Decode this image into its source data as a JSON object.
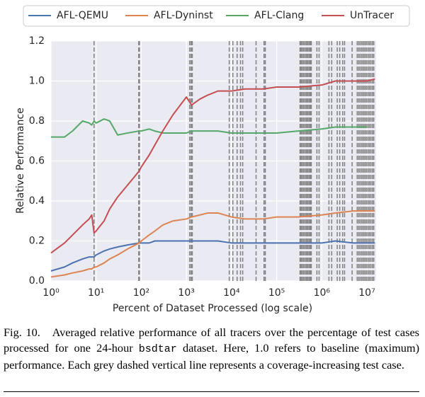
{
  "chart_data": {
    "type": "line",
    "xlabel": "Percent of Dataset Processed (log scale)",
    "ylabel": "Relative Performance",
    "xscale": "log",
    "xlim": [
      1,
      16000000
    ],
    "ylim": [
      0,
      1.2
    ],
    "xticks": [
      {
        "value": 1,
        "label": "10⁰"
      },
      {
        "value": 10,
        "label": "10¹"
      },
      {
        "value": 100,
        "label": "10²"
      },
      {
        "value": 1000,
        "label": "10³"
      },
      {
        "value": 10000,
        "label": "10⁴"
      },
      {
        "value": 100000,
        "label": "10⁵"
      },
      {
        "value": 1000000,
        "label": "10⁶"
      },
      {
        "value": 10000000,
        "label": "10⁷"
      }
    ],
    "yticks": [
      {
        "value": 0,
        "label": "0.0"
      },
      0.2,
      0.4,
      0.6,
      0.8,
      {
        "value": 1,
        "label": "1.0"
      },
      1.2
    ],
    "grid": true,
    "legend": "top",
    "x": [
      1,
      2,
      3,
      5,
      7,
      8,
      9,
      10,
      15,
      20,
      30,
      50,
      90,
      100,
      150,
      200,
      300,
      500,
      1000,
      1300,
      2000,
      3000,
      5000,
      10000,
      20000,
      50000,
      100000,
      300000,
      1000000,
      2000000,
      5000000,
      10000000,
      15000000
    ],
    "series": [
      {
        "name": "AFL-QEMU",
        "color": "#4c72b0",
        "values": [
          0.05,
          0.07,
          0.09,
          0.11,
          0.12,
          0.12,
          0.12,
          0.13,
          0.15,
          0.16,
          0.17,
          0.18,
          0.19,
          0.19,
          0.19,
          0.2,
          0.2,
          0.2,
          0.2,
          0.2,
          0.2,
          0.2,
          0.2,
          0.19,
          0.19,
          0.19,
          0.19,
          0.19,
          0.19,
          0.2,
          0.19,
          0.19,
          0.19
        ]
      },
      {
        "name": "AFL-Dyninst",
        "color": "#dd8452",
        "values": [
          0.02,
          0.03,
          0.04,
          0.05,
          0.06,
          0.06,
          0.07,
          0.07,
          0.09,
          0.11,
          0.13,
          0.16,
          0.19,
          0.2,
          0.23,
          0.25,
          0.28,
          0.3,
          0.31,
          0.32,
          0.33,
          0.34,
          0.34,
          0.32,
          0.31,
          0.31,
          0.32,
          0.32,
          0.33,
          0.34,
          0.35,
          0.35,
          0.35
        ]
      },
      {
        "name": "AFL-Clang",
        "color": "#55a868",
        "values": [
          0.72,
          0.72,
          0.75,
          0.8,
          0.79,
          0.78,
          0.8,
          0.79,
          0.81,
          0.8,
          0.73,
          0.74,
          0.75,
          0.75,
          0.76,
          0.75,
          0.74,
          0.74,
          0.74,
          0.75,
          0.75,
          0.75,
          0.75,
          0.74,
          0.74,
          0.74,
          0.74,
          0.75,
          0.76,
          0.77,
          0.77,
          0.77,
          null
        ]
      },
      {
        "name": "UnTracer",
        "color": "#c44e52",
        "values": [
          0.14,
          0.19,
          0.23,
          0.28,
          0.31,
          0.33,
          0.24,
          0.25,
          0.3,
          0.36,
          0.42,
          0.48,
          0.55,
          0.57,
          0.63,
          0.68,
          0.75,
          0.83,
          0.92,
          0.88,
          0.91,
          0.93,
          0.95,
          0.95,
          0.96,
          0.96,
          0.97,
          0.97,
          0.98,
          1.0,
          1.0,
          1.0,
          1.01
        ]
      }
    ],
    "dashed_lines": [
      9,
      88,
      91,
      1180,
      1270,
      1350,
      8900,
      10700,
      13300,
      15800,
      17700,
      35000,
      52500,
      56000,
      330000,
      350000,
      375000,
      400000,
      430000,
      460000,
      490000,
      525000,
      560000,
      585000,
      780000,
      870000,
      1440000,
      1660000,
      2200000,
      2500000,
      2900000,
      3200000,
      4700000,
      6100000,
      6600000,
      7100000,
      7700000,
      8300000,
      9000000,
      9700000,
      10500000,
      11300000,
      12200000,
      13200000,
      14200000
    ],
    "dashed_color": "#7f7f7f"
  },
  "caption": {
    "label": "Fig. 10.",
    "text_before": "Averaged relative performance of all tracers over the percentage of test cases processed for one 24-hour",
    "code": "bsdtar",
    "text_after": "dataset. Here, 1.0 refers to baseline (maximum) performance. Each grey dashed vertical line represents a coverage-increasing test case."
  }
}
